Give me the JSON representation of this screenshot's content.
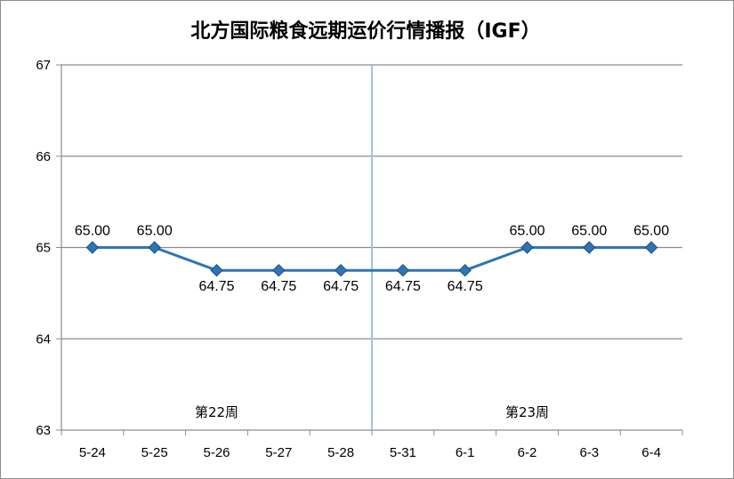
{
  "chart_data": {
    "type": "line",
    "title": "北方国际粮食远期运价行情播报（IGF）",
    "xlabel": "",
    "ylabel": "",
    "categories": [
      "5-24",
      "5-25",
      "5-26",
      "5-27",
      "5-28",
      "5-31",
      "6-1",
      "6-2",
      "6-3",
      "6-4"
    ],
    "series": [
      {
        "values": [
          65.0,
          65.0,
          64.75,
          64.75,
          64.75,
          64.75,
          64.75,
          65.0,
          65.0,
          65.0
        ],
        "labels": [
          "65.00",
          "65.00",
          "64.75",
          "64.75",
          "64.75",
          "64.75",
          "64.75",
          "65.00",
          "65.00",
          "65.00"
        ],
        "color": "#2e75b6"
      }
    ],
    "ylim": [
      63,
      67
    ],
    "yticks": [
      "63",
      "64",
      "65",
      "66",
      "67"
    ],
    "grid": true,
    "legend": "none",
    "annotations": {
      "week_labels": [
        "第22周",
        "第23周"
      ],
      "divider_after_category": "5-28",
      "divider_color": "#9dc3e6"
    }
  }
}
